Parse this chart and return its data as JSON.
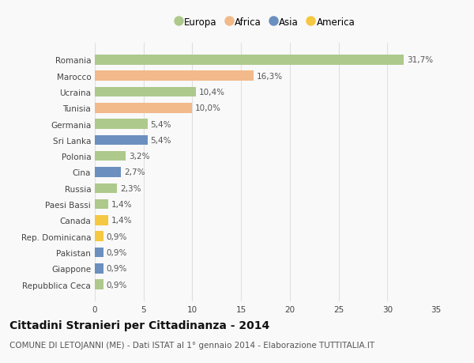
{
  "countries": [
    "Romania",
    "Marocco",
    "Ucraina",
    "Tunisia",
    "Germania",
    "Sri Lanka",
    "Polonia",
    "Cina",
    "Russia",
    "Paesi Bassi",
    "Canada",
    "Rep. Dominicana",
    "Pakistan",
    "Giappone",
    "Repubblica Ceca"
  ],
  "values": [
    31.7,
    16.3,
    10.4,
    10.0,
    5.4,
    5.4,
    3.2,
    2.7,
    2.3,
    1.4,
    1.4,
    0.9,
    0.9,
    0.9,
    0.9
  ],
  "labels": [
    "31,7%",
    "16,3%",
    "10,4%",
    "10,0%",
    "5,4%",
    "5,4%",
    "3,2%",
    "2,7%",
    "2,3%",
    "1,4%",
    "1,4%",
    "0,9%",
    "0,9%",
    "0,9%",
    "0,9%"
  ],
  "regions": [
    "Europa",
    "Africa",
    "Europa",
    "Africa",
    "Europa",
    "Asia",
    "Europa",
    "Asia",
    "Europa",
    "Europa",
    "America",
    "America",
    "Asia",
    "Asia",
    "Europa"
  ],
  "region_colors": {
    "Europa": "#aec98c",
    "Africa": "#f2b98a",
    "Asia": "#6b8fbf",
    "America": "#f5c842"
  },
  "legend_order": [
    "Europa",
    "Africa",
    "Asia",
    "America"
  ],
  "title": "Cittadini Stranieri per Cittadinanza - 2014",
  "subtitle": "COMUNE DI LETOJANNI (ME) - Dati ISTAT al 1° gennaio 2014 - Elaborazione TUTTITALIA.IT",
  "xlim": [
    0,
    35
  ],
  "xticks": [
    0,
    5,
    10,
    15,
    20,
    25,
    30,
    35
  ],
  "background_color": "#f9f9f9",
  "grid_color": "#e0e0e0",
  "title_fontsize": 10,
  "subtitle_fontsize": 7.5,
  "label_fontsize": 7.5,
  "tick_fontsize": 7.5,
  "legend_fontsize": 8.5
}
